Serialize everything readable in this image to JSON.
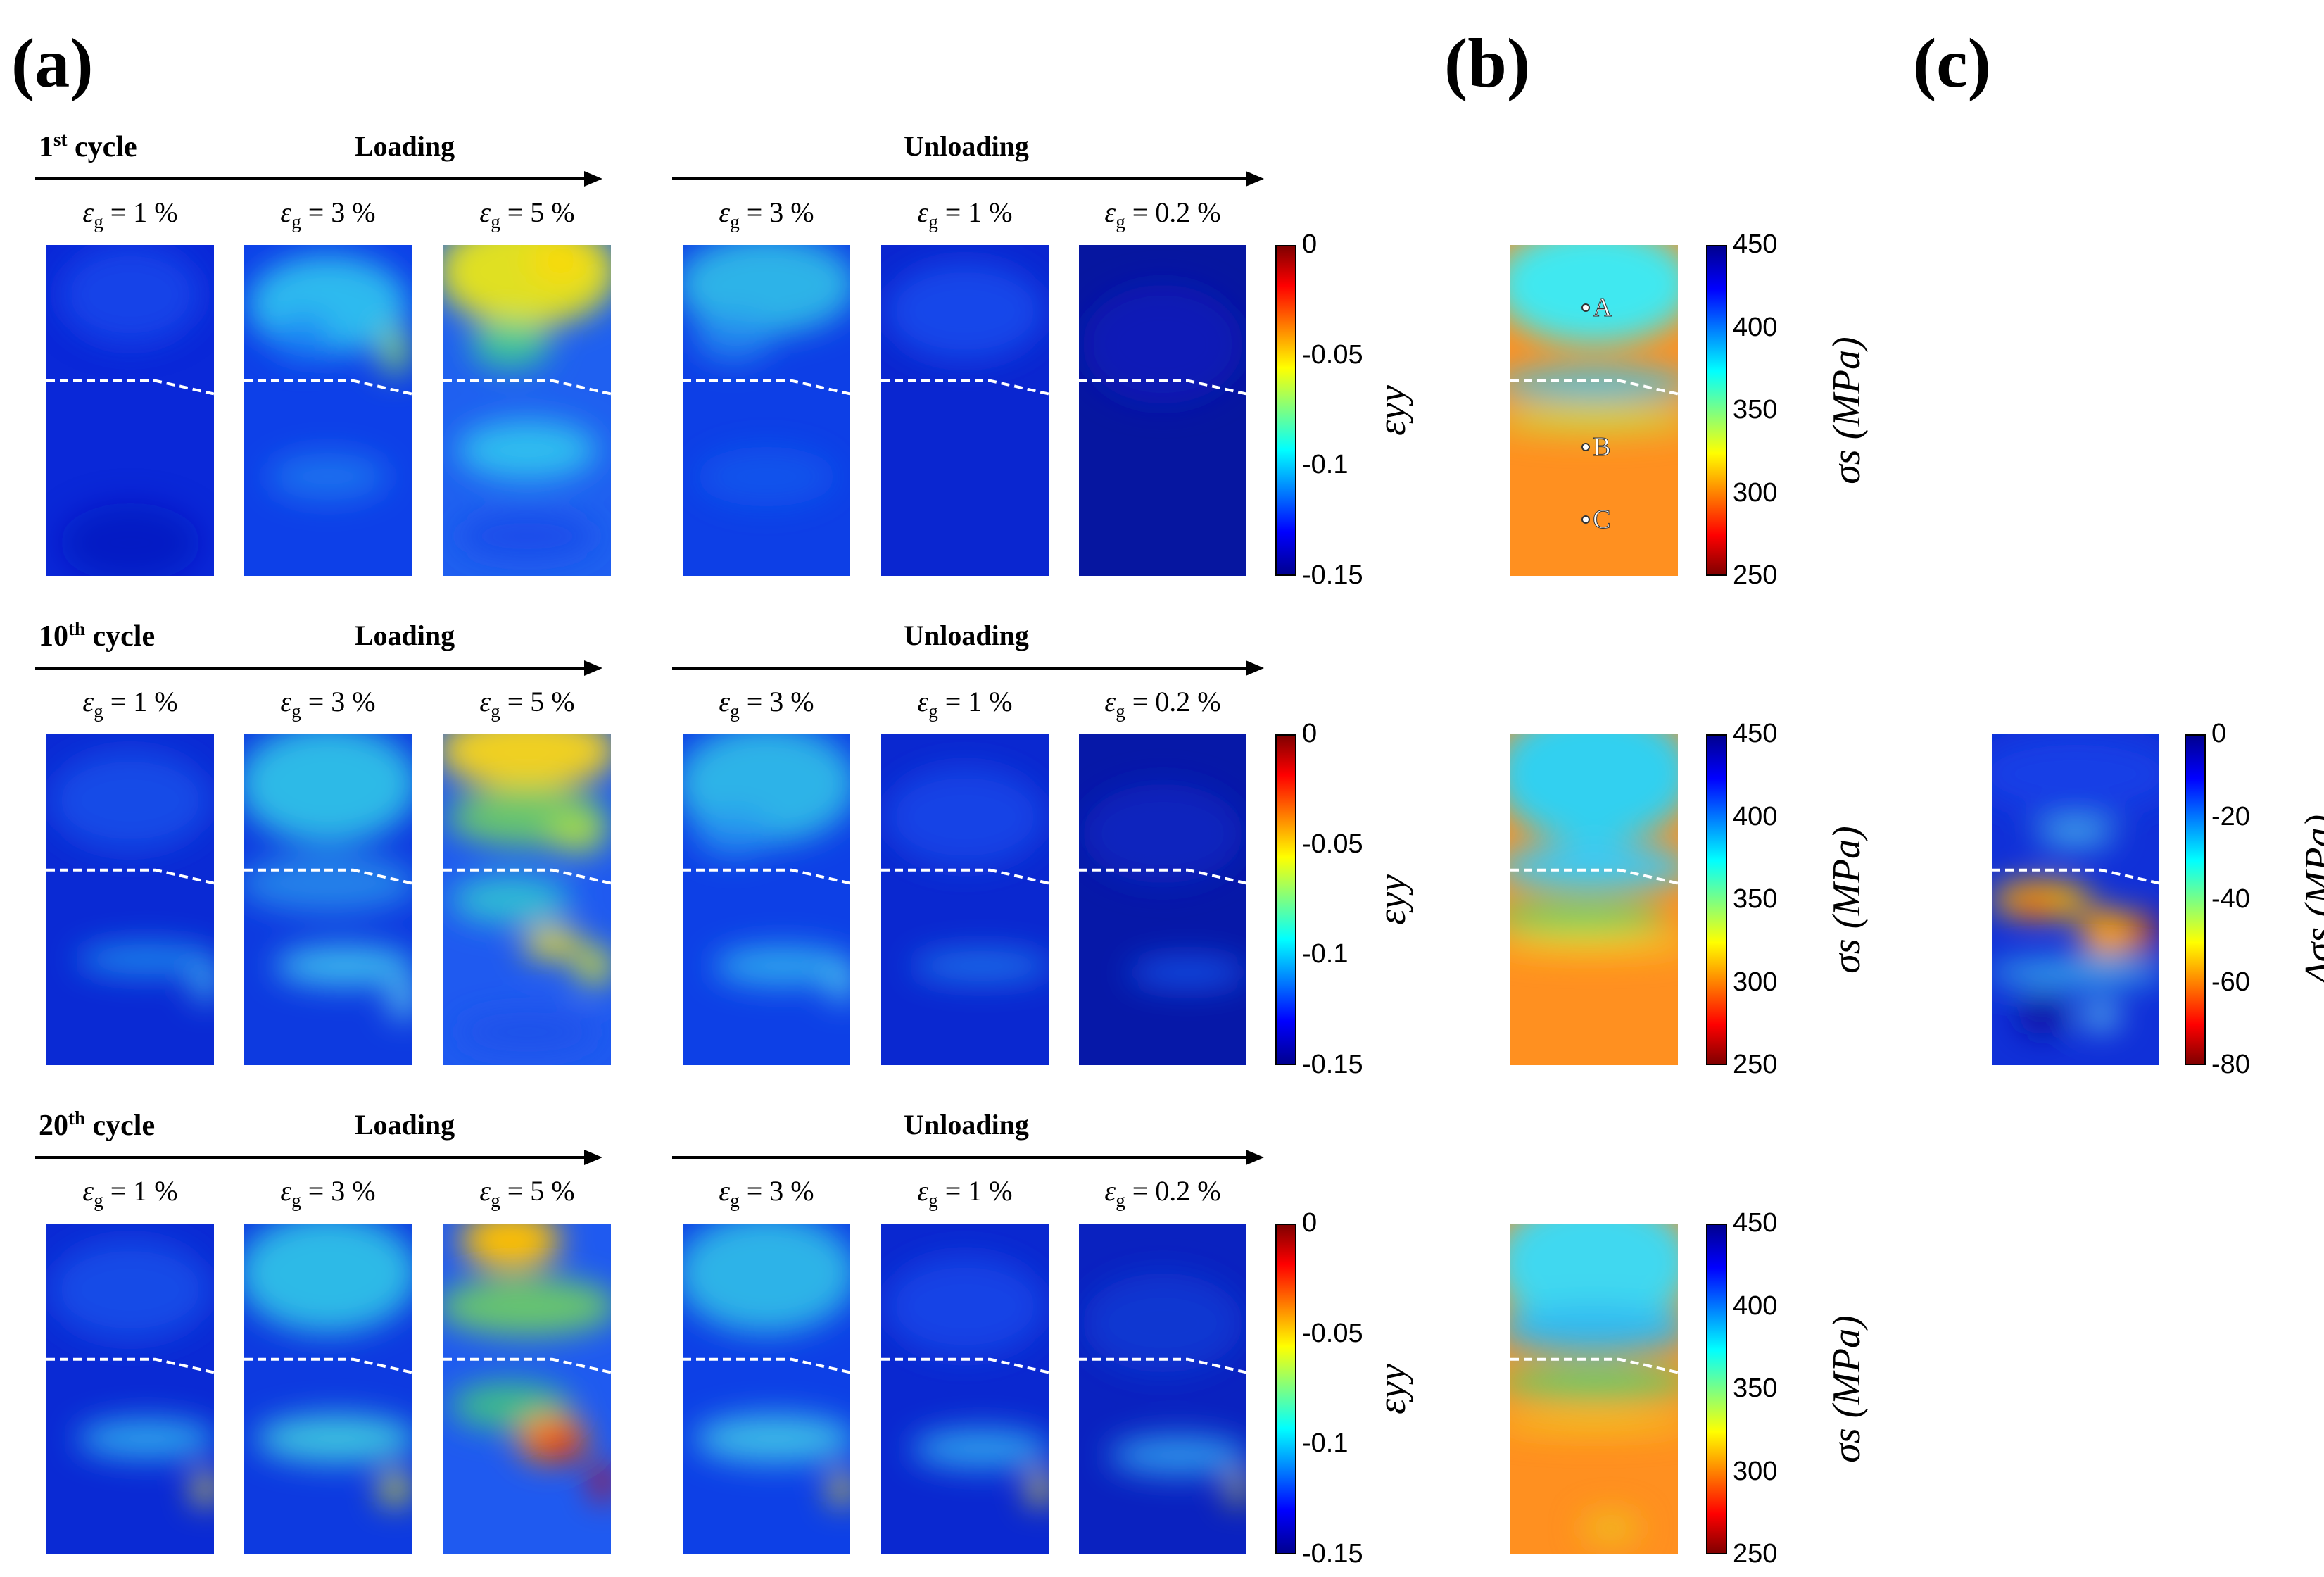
{
  "panels": {
    "a": "(a)",
    "b": "(b)",
    "c": "(c)"
  },
  "rows": [
    {
      "cycle_num": "1",
      "cycle_suffix": "st",
      "cycle_word": "cycle"
    },
    {
      "cycle_num": "10",
      "cycle_suffix": "th",
      "cycle_word": "cycle"
    },
    {
      "cycle_num": "20",
      "cycle_suffix": "th",
      "cycle_word": "cycle"
    }
  ],
  "phases": {
    "loading": "Loading",
    "unloading": "Unloading"
  },
  "strain_symbol": "ε",
  "strain_sub": "g",
  "strain_values": [
    "= 1 %",
    "= 3 %",
    "= 5 %",
    "= 3 %",
    "= 1 %",
    "= 0.2 %"
  ],
  "colorbars": {
    "strain": {
      "ticks": [
        "0",
        "-0.05",
        "-0.1",
        "-0.15"
      ],
      "title": "εyy"
    },
    "stress": {
      "ticks": [
        "450",
        "400",
        "350",
        "300",
        "250"
      ],
      "title": "σs (MPa)"
    },
    "delta": {
      "ticks": [
        "0",
        "-20",
        "-40",
        "-60",
        "-80"
      ],
      "title": "Δσs (MPa)"
    }
  },
  "points": [
    "A",
    "B",
    "C"
  ],
  "colors": {
    "jet_dark_blue": "#00008f",
    "jet_blue": "#0000ff",
    "jet_cyan": "#00ffff",
    "jet_yellow": "#ffff00",
    "jet_red": "#ff0000",
    "jet_dark_red": "#800000",
    "interface_line": "#ffffff"
  }
}
